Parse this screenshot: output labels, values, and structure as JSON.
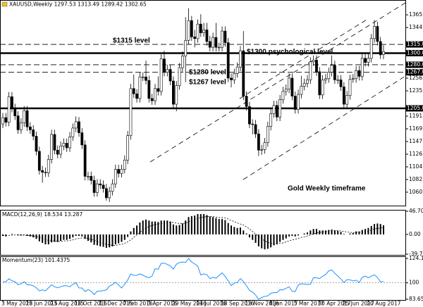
{
  "chart_data": [
    {
      "type": "candlestick",
      "title": "XAUUSD,Weekly 1297.53 1313.49 1289.42 1302.65",
      "categories": [
        "3 May 2015",
        null,
        null,
        null,
        null,
        null,
        null,
        null,
        "28 Jun 2015",
        null,
        null,
        null,
        null,
        null,
        null,
        null,
        "23 Aug 2015",
        null,
        null,
        null,
        null,
        null,
        null,
        null,
        "18 Oct 2015",
        null,
        null,
        null,
        null,
        null,
        null,
        null,
        "13 Dec 2015",
        null,
        null,
        null,
        null,
        null,
        null,
        null,
        "7 Feb 2016",
        null,
        null,
        null,
        null,
        null,
        null,
        null,
        "3 Apr 2016",
        null,
        null,
        null,
        null,
        null,
        null,
        null,
        "29 May 2016",
        null,
        null,
        null,
        null,
        null,
        null,
        null,
        "24 Jul 2016",
        null,
        null,
        null,
        null,
        null,
        null,
        null,
        "18 Sep 2016",
        null,
        null,
        null,
        null,
        null,
        null,
        null,
        "13 Nov 2016",
        null,
        null,
        null,
        null,
        null,
        null,
        null,
        "8 Jan 2017",
        null,
        null,
        null,
        null,
        null,
        null,
        null,
        "5 Mar 2017",
        null,
        null,
        null,
        null,
        null,
        null,
        null,
        "30 Apr 2017",
        null,
        null,
        null,
        null,
        null,
        null,
        null,
        "25 Jun 2017",
        null,
        null,
        null,
        null,
        null,
        null,
        null,
        "20 Aug 2017",
        null,
        null,
        null,
        null,
        null
      ],
      "open": [
        1178,
        1189,
        1181,
        1225,
        1205,
        1192,
        1168,
        1180,
        1201,
        1173,
        1168,
        1157,
        1131,
        1098,
        1095,
        1094,
        1117,
        1160,
        1133,
        1126,
        1140,
        1145,
        1137,
        1156,
        1171,
        1182,
        1163,
        1142,
        1088,
        1088,
        1081,
        1060,
        1075,
        1073,
        1067,
        1051,
        1062,
        1075,
        1100,
        1093,
        1100,
        1116,
        1158,
        1239,
        1230,
        1222,
        1259,
        1259,
        1253,
        1222,
        1218,
        1239,
        1234,
        1290,
        1267,
        1272,
        1252,
        1212,
        1244,
        1275,
        1295,
        1322,
        1356,
        1328,
        1325,
        1350,
        1335,
        1340,
        1320,
        1310,
        1327,
        1310,
        1310,
        1338,
        1318,
        1257,
        1254,
        1265,
        1276,
        1304,
        1226,
        1208,
        1178,
        1177,
        1161,
        1133,
        1134,
        1146,
        1174,
        1196,
        1210,
        1190,
        1220,
        1234,
        1238,
        1257,
        1226,
        1203,
        1229,
        1243,
        1248,
        1254,
        1285,
        1288,
        1268,
        1228,
        1254,
        1256,
        1267,
        1279,
        1254,
        1254,
        1242,
        1212,
        1227,
        1255,
        1256,
        1270,
        1260,
        1291,
        1284,
        1291,
        1325,
        1346,
        1320,
        1297.53
      ],
      "high": [
        1197,
        1197,
        1233,
        1233,
        1213,
        1200,
        1188,
        1209,
        1209,
        1181,
        1176,
        1165,
        1139,
        1106,
        1103,
        1125,
        1168,
        1168,
        1141,
        1148,
        1153,
        1153,
        1164,
        1179,
        1191,
        1190,
        1171,
        1150,
        1096,
        1096,
        1089,
        1083,
        1083,
        1081,
        1075,
        1070,
        1083,
        1108,
        1108,
        1108,
        1124,
        1166,
        1247,
        1263,
        1238,
        1267,
        1267,
        1287,
        1261,
        1230,
        1247,
        1260,
        1298,
        1304,
        1280,
        1280,
        1260,
        1252,
        1283,
        1303,
        1362,
        1377,
        1364,
        1340,
        1358,
        1367,
        1352,
        1352,
        1330,
        1335,
        1352,
        1318,
        1346,
        1346,
        1326,
        1265,
        1273,
        1284,
        1312,
        1338,
        1234,
        1216,
        1186,
        1185,
        1169,
        1142,
        1154,
        1182,
        1204,
        1218,
        1218,
        1228,
        1242,
        1246,
        1265,
        1265,
        1234,
        1237,
        1261,
        1256,
        1262,
        1293,
        1296,
        1296,
        1276,
        1262,
        1264,
        1275,
        1296,
        1287,
        1262,
        1262,
        1250,
        1235,
        1263,
        1264,
        1278,
        1278,
        1299,
        1299,
        1299,
        1333,
        1357,
        1354,
        1328,
        1313.49
      ],
      "low": [
        1171,
        1174,
        1174,
        1198,
        1185,
        1161,
        1161,
        1173,
        1166,
        1161,
        1150,
        1124,
        1091,
        1077,
        1087,
        1087,
        1110,
        1126,
        1119,
        1119,
        1133,
        1130,
        1130,
        1149,
        1164,
        1156,
        1135,
        1081,
        1081,
        1074,
        1053,
        1053,
        1066,
        1060,
        1046,
        1044,
        1055,
        1068,
        1086,
        1086,
        1093,
        1109,
        1151,
        1223,
        1215,
        1215,
        1252,
        1246,
        1215,
        1211,
        1211,
        1227,
        1227,
        1260,
        1260,
        1245,
        1205,
        1200,
        1237,
        1268,
        1250,
        1315,
        1321,
        1310,
        1318,
        1328,
        1328,
        1313,
        1303,
        1303,
        1303,
        1303,
        1303,
        1311,
        1250,
        1241,
        1247,
        1258,
        1269,
        1219,
        1201,
        1171,
        1160,
        1154,
        1123,
        1125,
        1127,
        1139,
        1167,
        1189,
        1183,
        1183,
        1213,
        1227,
        1231,
        1219,
        1196,
        1196,
        1222,
        1236,
        1241,
        1247,
        1278,
        1261,
        1221,
        1221,
        1247,
        1249,
        1260,
        1247,
        1247,
        1235,
        1205,
        1204,
        1220,
        1249,
        1249,
        1253,
        1253,
        1277,
        1277,
        1284,
        1318,
        1313,
        1290,
        1289.42
      ],
      "close": [
        1189,
        1181,
        1225,
        1205,
        1192,
        1168,
        1180,
        1201,
        1173,
        1168,
        1157,
        1131,
        1098,
        1095,
        1094,
        1117,
        1160,
        1133,
        1126,
        1140,
        1145,
        1137,
        1156,
        1171,
        1182,
        1163,
        1142,
        1088,
        1088,
        1081,
        1060,
        1075,
        1073,
        1067,
        1051,
        1062,
        1075,
        1100,
        1093,
        1100,
        1116,
        1158,
        1239,
        1230,
        1222,
        1259,
        1259,
        1253,
        1222,
        1218,
        1239,
        1234,
        1290,
        1267,
        1272,
        1252,
        1212,
        1244,
        1275,
        1295,
        1322,
        1356,
        1328,
        1325,
        1350,
        1335,
        1340,
        1320,
        1310,
        1327,
        1310,
        1310,
        1338,
        1318,
        1257,
        1254,
        1265,
        1276,
        1304,
        1226,
        1208,
        1178,
        1177,
        1161,
        1133,
        1134,
        1146,
        1174,
        1196,
        1210,
        1190,
        1220,
        1234,
        1238,
        1257,
        1226,
        1203,
        1229,
        1243,
        1248,
        1254,
        1285,
        1288,
        1268,
        1228,
        1254,
        1256,
        1267,
        1279,
        1254,
        1254,
        1242,
        1212,
        1227,
        1255,
        1256,
        1270,
        1260,
        1291,
        1284,
        1291,
        1325,
        1346,
        1320,
        1297,
        1302.65
      ],
      "up_color": "#ffffff",
      "down_color": "#000000",
      "ylim": [
        1040,
        1389
      ],
      "yticks": [
        {
          "value": 1060.7,
          "label": "1060.70"
        },
        {
          "value": 1082.5,
          "label": "1082.50"
        },
        {
          "value": 1104.3,
          "label": "1104.30"
        },
        {
          "value": 1126.1,
          "label": "1126.10"
        },
        {
          "value": 1147.9,
          "label": "1147.90"
        },
        {
          "value": 1169.7,
          "label": "1169.70"
        },
        {
          "value": 1191.5,
          "label": "1191.50"
        },
        {
          "value": 1235.1,
          "label": "1235.10"
        },
        {
          "value": 1256.9,
          "label": "1256.90"
        },
        {
          "value": 1344.1,
          "label": "1344.10"
        },
        {
          "value": 1365.9,
          "label": "1365.90"
        }
      ],
      "levels": [
        {
          "value": 1315,
          "label": "1315.00",
          "style": "dashed"
        },
        {
          "value": 1300,
          "label": "1300.00",
          "style": "solid"
        },
        {
          "value": 1280,
          "label": "1280.00",
          "style": "dashed"
        },
        {
          "value": 1267,
          "label": "1267.00",
          "style": "dashed"
        },
        {
          "value": 1205,
          "label": "1205.00",
          "style": "solid"
        }
      ],
      "annotations": [
        "$1315 level",
        "$1300 psychological level",
        "$1280 level",
        "$1267 level",
        "Gold Weekly timeframe"
      ]
    },
    {
      "type": "macd",
      "title": "MACD(12,26,9) 18.534 13.287",
      "values": [
        -3,
        -4,
        0,
        1,
        0,
        -2,
        -2,
        -1,
        -3,
        -4,
        -6,
        -9,
        -14,
        -17,
        -20,
        -20,
        -16,
        -15,
        -15,
        -13,
        -11,
        -11,
        -9,
        -6,
        -3,
        -3,
        -4,
        -9,
        -13,
        -16,
        -21,
        -22,
        -24,
        -25,
        -27,
        -26,
        -24,
        -20,
        -18,
        -15,
        -11,
        -5,
        6,
        13,
        18,
        24,
        28,
        30,
        28,
        26,
        26,
        25,
        28,
        28,
        28,
        26,
        20,
        18,
        19,
        22,
        28,
        35,
        37,
        38,
        41,
        41,
        41,
        39,
        36,
        35,
        33,
        31,
        31,
        29,
        23,
        18,
        15,
        13,
        14,
        8,
        2,
        -6,
        -11,
        -17,
        -24,
        -28,
        -30,
        -29,
        -26,
        -22,
        -20,
        -15,
        -11,
        -8,
        -4,
        -3,
        -4,
        -2,
        0,
        2,
        4,
        8,
        11,
        11,
        8,
        8,
        8,
        9,
        10,
        8,
        7,
        5,
        1,
        0,
        2,
        3,
        6,
        6,
        9,
        11,
        13,
        17,
        21,
        22,
        21,
        18.534
      ],
      "signal": [
        -2,
        -2.5,
        -2,
        -1.5,
        -1,
        -1,
        -1.5,
        -1.5,
        -2,
        -2.5,
        -3,
        -4,
        -6,
        -8,
        -10,
        -12,
        -13,
        -13,
        -14,
        -14,
        -13,
        -13,
        -12,
        -11,
        -9,
        -8,
        -7,
        -7,
        -8,
        -10,
        -12,
        -14,
        -16,
        -18,
        -20,
        -21,
        -22,
        -22,
        -21,
        -20,
        -18,
        -15,
        -11,
        -6,
        -1,
        4,
        9,
        13,
        16,
        18,
        20,
        21,
        22,
        23,
        24,
        25,
        24,
        23,
        22,
        22,
        23,
        25,
        28,
        30,
        32,
        34,
        35,
        36,
        36,
        36,
        35,
        34,
        34,
        33,
        31,
        28,
        26,
        23,
        21,
        19,
        15,
        11,
        6,
        1,
        -4,
        -9,
        -13,
        -16,
        -18,
        -19,
        -19,
        -18,
        -17,
        -15,
        -13,
        -11,
        -10,
        -8,
        -6,
        -5,
        -3,
        -1,
        1,
        3,
        4,
        5,
        6,
        7,
        8,
        8,
        8,
        7,
        6,
        5,
        4,
        4,
        4,
        5,
        5,
        6,
        7,
        9,
        11,
        12,
        13,
        13.287
      ],
      "color": "#000000",
      "signal_color": "#000000",
      "ylim": [
        -39.796,
        46.709
      ],
      "yticks": [
        46.709,
        {
          "value": 0,
          "label": "0.00"
        },
        -39.796
      ]
    },
    {
      "type": "line",
      "title": "Momentum(23) 101.4375",
      "values": [
        101,
        101,
        104,
        102,
        101,
        98,
        99,
        101,
        98,
        98,
        97,
        95,
        92,
        93,
        92,
        95,
        98,
        96,
        95,
        96,
        97,
        97,
        96,
        98.5,
        100.1,
        94.9,
        94.8,
        91.3,
        93.2,
        91.6,
        88.3,
        91.6,
        91.9,
        92.2,
        92.9,
        96.7,
        98.2,
        100.5,
        97.9,
        94.8,
        98.5,
        102.8,
        108.7,
        107.4,
        107.5,
        108.9,
        107.5,
        106,
        105.1,
        106.7,
        113.9,
        113.4,
        119.3,
        119.5,
        118.3,
        116.7,
        113.6,
        118.4,
        120.1,
        120.5,
        120.2,
        124.1868,
        120.7,
        118.7,
        116.6,
        107.7,
        108.9,
        108,
        104.1,
        105.4,
        104.5,
        107.2,
        109.9,
        106.4,
        101.9,
        97.2,
        99.8,
        100.3,
        104.2,
        101.2,
        97.1,
        92.4,
        90.9,
        87.8,
        83.6574,
        85.4,
        86.5,
        87,
        89.6,
        90.3,
        90.2,
        93.1,
        93,
        94.5,
        96,
        91.6,
        91.3,
        97.8,
        99.1,
        98.7,
        98.3,
        98.5,
        105.1,
        105,
        104.2,
        106.5,
        108.2,
        111.8,
        112.8,
        109.4,
        106.8,
        103.8,
        100.2,
        103.1,
        102.9,
        101.8,
        102.6,
        100.2,
        105.3,
        106.7,
        105,
        106.6,
        107.9,
        105.3,
        100.9,
        101.4375
      ],
      "color": "#1e90ff",
      "level": 100,
      "ylim": [
        83.6574,
        124.1868
      ],
      "yticks": [
        124.1868,
        100,
        83.6574
      ]
    }
  ]
}
